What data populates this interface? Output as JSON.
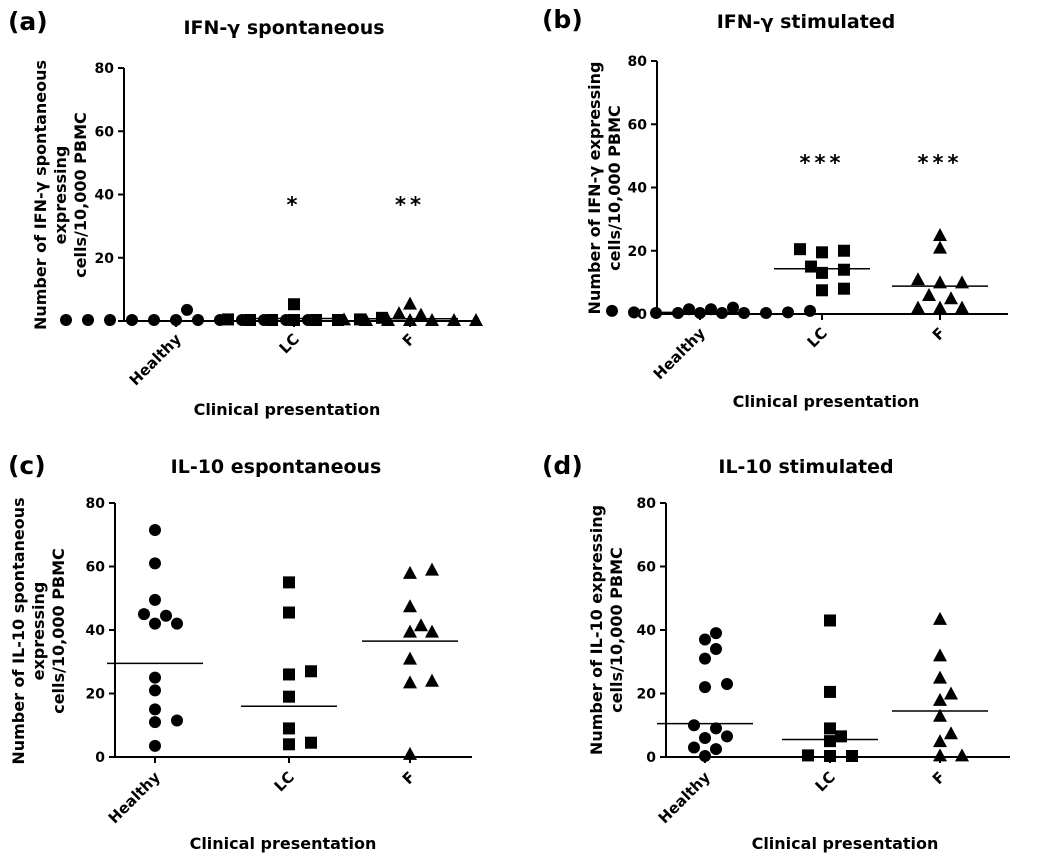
{
  "figure": {
    "panels": [
      {
        "label": "(a)",
        "title": "IFN-γ spontaneous",
        "ylabel_lines": [
          "Number of IFN-γ spontaneous",
          "expressing",
          "cells/10,000 PBMC"
        ],
        "xlabel": "Clinical presentation",
        "ylim": [
          0,
          80
        ],
        "yticks": [
          "0",
          "20",
          "40",
          "60",
          "80"
        ],
        "categories": [
          "Healthy",
          "LC",
          "F"
        ],
        "significance": [
          "",
          "*",
          "**"
        ]
      },
      {
        "label": "(b)",
        "title": "IFN-γ stimulated",
        "ylabel_lines": [
          "Number of IFN-γ expressing",
          "cells/10,000 PBMC"
        ],
        "xlabel": "Clinical presentation",
        "ylim": [
          0,
          80
        ],
        "yticks": [
          "0",
          "20",
          "40",
          "60",
          "80"
        ],
        "categories": [
          "Healthy",
          "LC",
          "F"
        ],
        "significance": [
          "",
          "***",
          "***"
        ]
      },
      {
        "label": "(c)",
        "title": "IL-10 espontaneous",
        "ylabel_lines": [
          "Number of IL-10 spontaneous",
          "expressing",
          "cells/10,000 PBMC"
        ],
        "xlabel": "Clinical presentation",
        "ylim": [
          0,
          80
        ],
        "yticks": [
          "0",
          "20",
          "40",
          "60",
          "80"
        ],
        "categories": [
          "Healthy",
          "LC",
          "F"
        ],
        "significance": [
          "",
          "",
          ""
        ]
      },
      {
        "label": "(d)",
        "title": "IL-10 stimulated",
        "ylabel_lines": [
          "Number of IL-10 expressing",
          "cells/10,000 PBMC"
        ],
        "xlabel": "Clinical presentation",
        "ylim": [
          0,
          80
        ],
        "yticks": [
          "0",
          "20",
          "40",
          "60",
          "80"
        ],
        "categories": [
          "Healthy",
          "LC",
          "F"
        ],
        "significance": [
          "",
          "",
          ""
        ]
      }
    ]
  },
  "chart_data": [
    {
      "type": "scatter",
      "title": "IFN-γ spontaneous",
      "xlabel": "Clinical presentation",
      "ylabel": "Number of IFN-γ spontaneous expressing cells/10,000 PBMC",
      "ylim": [
        0,
        80
      ],
      "categories": [
        "Healthy",
        "LC",
        "F"
      ],
      "markers": [
        "circle",
        "square",
        "triangle"
      ],
      "series": [
        {
          "category": "Healthy",
          "values": [
            0,
            0,
            0,
            0,
            0,
            0,
            0,
            0,
            0,
            0,
            0,
            0,
            3.5
          ],
          "median": 0
        },
        {
          "category": "LC",
          "values": [
            5.3,
            1,
            0.5,
            0.5,
            0,
            0,
            0,
            0,
            0
          ],
          "median": 0.8
        },
        {
          "category": "F",
          "values": [
            5.5,
            2.5,
            2,
            0.5,
            0,
            0,
            0,
            0,
            0,
            0
          ],
          "median": 0.7
        }
      ],
      "annotations": [
        "",
        "*",
        "**"
      ]
    },
    {
      "type": "scatter",
      "title": "IFN-γ stimulated",
      "xlabel": "Clinical presentation",
      "ylabel": "Number of IFN-γ expressing cells/10,000 PBMC",
      "ylim": [
        0,
        80
      ],
      "categories": [
        "Healthy",
        "LC",
        "F"
      ],
      "markers": [
        "circle",
        "square",
        "triangle"
      ],
      "series": [
        {
          "category": "Healthy",
          "values": [
            2,
            1.5,
            1.5,
            1,
            1,
            0.5,
            0.5,
            0,
            0,
            0,
            0,
            0,
            0
          ],
          "median": 0.5
        },
        {
          "category": "LC",
          "values": [
            20.5,
            20,
            19.5,
            15,
            14,
            13,
            8,
            7.5
          ],
          "median": 14.3
        },
        {
          "category": "F",
          "values": [
            25,
            21,
            11,
            10,
            10,
            6,
            5,
            2,
            2,
            2
          ],
          "median": 8.8
        }
      ],
      "annotations": [
        "",
        "***",
        "***"
      ]
    },
    {
      "type": "scatter",
      "title": "IL-10 espontaneous",
      "xlabel": "Clinical presentation",
      "ylabel": "Number of IL-10 spontaneous expressing cells/10,000 PBMC",
      "ylim": [
        0,
        80
      ],
      "categories": [
        "Healthy",
        "LC",
        "F"
      ],
      "markers": [
        "circle",
        "square",
        "triangle"
      ],
      "series": [
        {
          "category": "Healthy",
          "values": [
            71.5,
            61,
            49.5,
            45,
            44.5,
            42,
            42,
            25,
            21,
            15,
            11.5,
            11,
            3.5
          ],
          "median": 29.5
        },
        {
          "category": "LC",
          "values": [
            55,
            45.5,
            27,
            26,
            19,
            9,
            4.5,
            4
          ],
          "median": 16
        },
        {
          "category": "F",
          "values": [
            59,
            58,
            47.5,
            41.5,
            39.5,
            39.5,
            31,
            24,
            23.5,
            1
          ],
          "median": 36.5
        }
      ],
      "annotations": [
        "",
        "",
        ""
      ]
    },
    {
      "type": "scatter",
      "title": "IL-10 stimulated",
      "xlabel": "Clinical presentation",
      "ylabel": "Number of IL-10 expressing cells/10,000 PBMC",
      "ylim": [
        0,
        80
      ],
      "categories": [
        "Healthy",
        "LC",
        "F"
      ],
      "markers": [
        "circle",
        "square",
        "triangle"
      ],
      "series": [
        {
          "category": "Healthy",
          "values": [
            39,
            37,
            34,
            31,
            23,
            22,
            10,
            9,
            6.5,
            6,
            3,
            2.5,
            0
          ],
          "median": 10.5
        },
        {
          "category": "LC",
          "values": [
            43,
            20.5,
            9,
            6.5,
            5,
            0.5,
            0,
            0
          ],
          "median": 5.5
        },
        {
          "category": "F",
          "values": [
            43.5,
            32,
            25,
            20,
            18,
            13,
            7.5,
            5,
            0.5,
            0.5
          ],
          "median": 14.5
        }
      ],
      "annotations": [
        "",
        "",
        ""
      ]
    }
  ]
}
